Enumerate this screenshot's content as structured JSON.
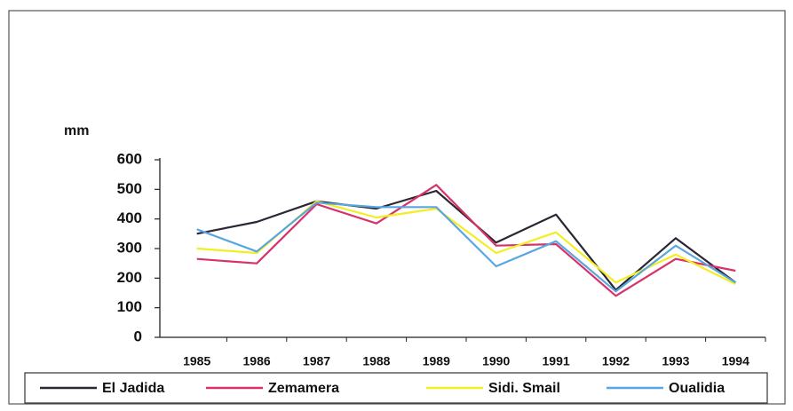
{
  "chart_data": {
    "type": "line",
    "y_label": "mm",
    "categories": [
      "1985",
      "1986",
      "1987",
      "1988",
      "1989",
      "1990",
      "1991",
      "1992",
      "1993",
      "1994"
    ],
    "series": [
      {
        "name": "El Jadida",
        "color": "#2b2633",
        "values": [
          350,
          390,
          460,
          435,
          495,
          320,
          415,
          160,
          335,
          185
        ]
      },
      {
        "name": "Zemamera",
        "color": "#d8326a",
        "values": [
          265,
          250,
          450,
          385,
          515,
          310,
          315,
          140,
          265,
          225
        ]
      },
      {
        "name": "Sidi. Smail",
        "color": "#f2ee22",
        "values": [
          300,
          285,
          460,
          405,
          435,
          285,
          355,
          185,
          280,
          180
        ]
      },
      {
        "name": "Oualidia",
        "color": "#5aa6e0",
        "values": [
          365,
          290,
          455,
          440,
          440,
          240,
          325,
          155,
          310,
          185
        ]
      }
    ],
    "ylim": [
      0,
      600
    ],
    "yticks": [
      0,
      100,
      200,
      300,
      400,
      500,
      600
    ],
    "legend": "bottom"
  }
}
